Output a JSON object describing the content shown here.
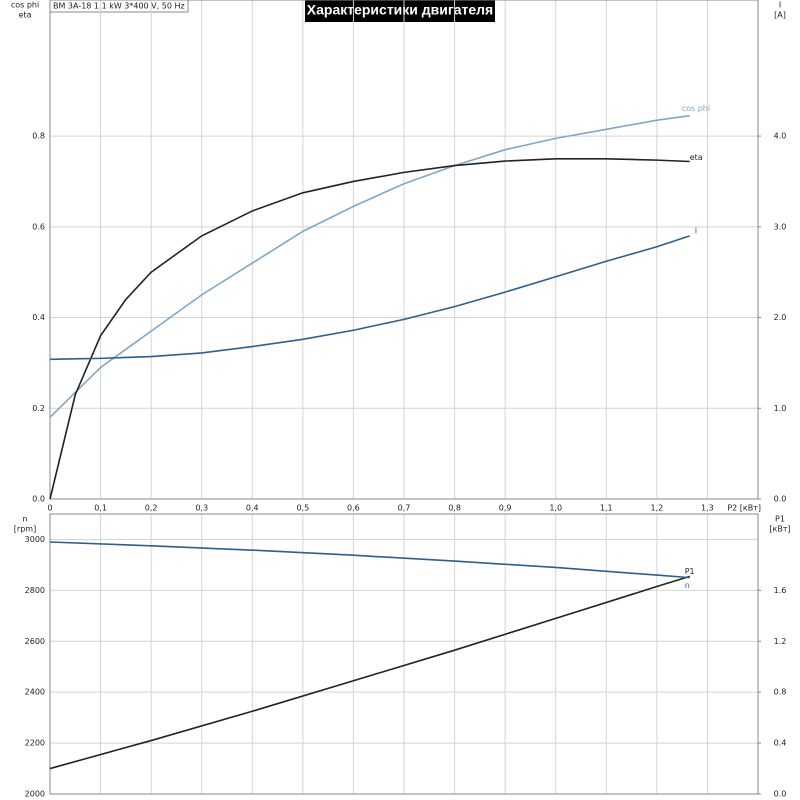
{
  "chart_data": [
    {
      "type": "line",
      "title": "Характеристики двигателя",
      "info": "BM 3A-18   1.1 kW   3*400 V, 50 Hz",
      "xlabel": "P2 [кВт]",
      "ylabel": [
        "cos phi",
        "eta"
      ],
      "y2label": [
        "I",
        "[A]"
      ],
      "x": [
        0,
        0.05,
        0.1,
        0.15,
        0.2,
        0.3,
        0.4,
        0.5,
        0.6,
        0.7,
        0.8,
        0.9,
        1.0,
        1.1,
        1.2,
        1.265
      ],
      "series": [
        {
          "name": "cos phi",
          "color": "#7fa6c8",
          "values": [
            0.18,
            0.235,
            0.29,
            0.33,
            0.37,
            0.45,
            0.52,
            0.59,
            0.645,
            0.695,
            0.735,
            0.77,
            0.795,
            0.815,
            0.835,
            0.845
          ]
        },
        {
          "name": "eta",
          "color": "#222222",
          "values": [
            0,
            0.23,
            0.36,
            0.44,
            0.5,
            0.58,
            0.635,
            0.675,
            0.7,
            0.72,
            0.735,
            0.745,
            0.75,
            0.75,
            0.747,
            0.744
          ]
        },
        {
          "name": "I",
          "color": "#2d5f8f",
          "axis": "y2",
          "values": [
            1.54,
            1.545,
            1.55,
            1.56,
            1.57,
            1.61,
            1.68,
            1.76,
            1.86,
            1.98,
            2.12,
            2.28,
            2.45,
            2.62,
            2.78,
            2.9
          ]
        }
      ],
      "xlim": [
        0,
        1.4
      ],
      "xticks": [
        0,
        {
          "value": 0.1,
          "label": "0,1"
        },
        {
          "value": 0.2,
          "label": "0,2"
        },
        {
          "value": 0.3,
          "label": "0,3"
        },
        {
          "value": 0.4,
          "label": "0,4"
        },
        {
          "value": 0.5,
          "label": "0,5"
        },
        {
          "value": 0.6,
          "label": "0,6"
        },
        {
          "value": 0.7,
          "label": "0,7"
        },
        {
          "value": 0.8,
          "label": "0,8"
        },
        {
          "value": 0.9,
          "label": "0,9"
        },
        {
          "value": 1.0,
          "label": "1,0"
        },
        {
          "value": 1.1,
          "label": "1,1"
        },
        {
          "value": 1.2,
          "label": "1,2"
        },
        {
          "value": 1.3,
          "label": "1,3"
        }
      ],
      "ylim": [
        0,
        1.1
      ],
      "yticks": [
        {
          "value": 0,
          "label": "0.0"
        },
        0.2,
        0.4,
        0.6,
        0.8
      ],
      "y2lim": [
        0,
        5.5
      ],
      "y2ticks": [
        {
          "value": 0,
          "label": "0.0"
        },
        {
          "value": 1,
          "label": "1.0"
        },
        {
          "value": 2,
          "label": "2.0"
        },
        {
          "value": 3,
          "label": "3.0"
        },
        {
          "value": 4,
          "label": "4.0"
        }
      ],
      "grid": true
    },
    {
      "type": "line",
      "ylabel": [
        "n",
        "[rpm]"
      ],
      "y2label": [
        "P1",
        "[кВт]"
      ],
      "x": [
        0,
        0.2,
        0.4,
        0.6,
        0.8,
        1.0,
        1.2,
        1.265
      ],
      "series": [
        {
          "name": "P1",
          "color": "#222222",
          "axis": "y2",
          "values": [
            0.2,
            0.42,
            0.65,
            0.89,
            1.13,
            1.38,
            1.63,
            1.71
          ]
        },
        {
          "name": "n",
          "color": "#2d5f8f",
          "values": [
            2990,
            2975,
            2958,
            2938,
            2915,
            2890,
            2860,
            2850
          ]
        }
      ],
      "xlim": [
        0,
        1.4
      ],
      "ylim": [
        2000,
        3100
      ],
      "yticks": [
        2000,
        2200,
        2400,
        2600,
        2800,
        3000
      ],
      "y2lim": [
        0,
        2.2
      ],
      "y2ticks": [
        {
          "value": 0,
          "label": "0.0"
        },
        0.4,
        0.8,
        1.2,
        1.6
      ],
      "grid": true
    }
  ]
}
